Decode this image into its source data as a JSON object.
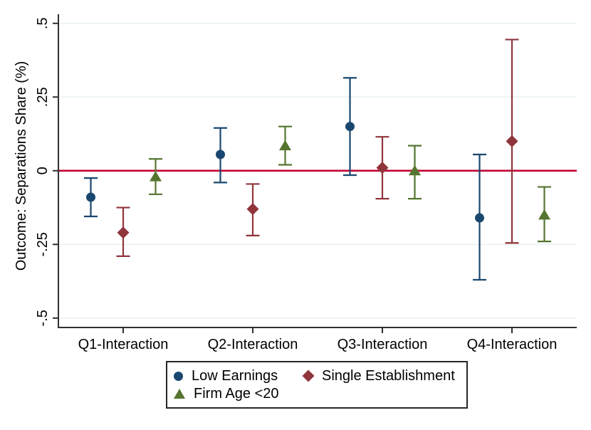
{
  "chart_data": {
    "type": "scatter",
    "subtype": "coefficient-plot-with-ci",
    "title": "",
    "xlabel": "",
    "ylabel": "Outcome: Separations Share (%)",
    "categories": [
      "Q1-Interaction",
      "Q2-Interaction",
      "Q3-Interaction",
      "Q4-Interaction"
    ],
    "yticks": [
      {
        "label": ".5",
        "value": 0.5
      },
      {
        "label": ".25",
        "value": 0.25
      },
      {
        "label": "0",
        "value": 0
      },
      {
        "label": "-.25",
        "value": -0.25
      },
      {
        "label": "-.5",
        "value": -0.5
      }
    ],
    "ylim": [
      -0.54,
      0.53
    ],
    "grid": true,
    "legend_position": "bottom",
    "zero_line": {
      "value": 0,
      "color": "#C10534"
    },
    "grid_color": "#E9F1F2",
    "axis_color": "#303030",
    "series": [
      {
        "name": "Low Earnings",
        "marker": "circle",
        "color": "#1A476F",
        "estimates": [
          -0.09,
          0.055,
          0.15,
          -0.16
        ],
        "ci_low": [
          -0.155,
          -0.04,
          -0.015,
          -0.37
        ],
        "ci_high": [
          -0.025,
          0.145,
          0.315,
          0.055
        ]
      },
      {
        "name": "Single Establishment",
        "marker": "diamond",
        "color": "#90353B",
        "estimates": [
          -0.21,
          -0.13,
          0.01,
          0.1
        ],
        "ci_low": [
          -0.29,
          -0.22,
          -0.095,
          -0.245
        ],
        "ci_high": [
          -0.125,
          -0.045,
          0.115,
          0.445
        ]
      },
      {
        "name": "Firm Age <20",
        "marker": "triangle",
        "color": "#55752F",
        "estimates": [
          -0.02,
          0.085,
          0.0,
          -0.15
        ],
        "ci_low": [
          -0.08,
          0.02,
          -0.095,
          -0.24
        ],
        "ci_high": [
          0.04,
          0.15,
          0.085,
          -0.055
        ]
      }
    ]
  }
}
